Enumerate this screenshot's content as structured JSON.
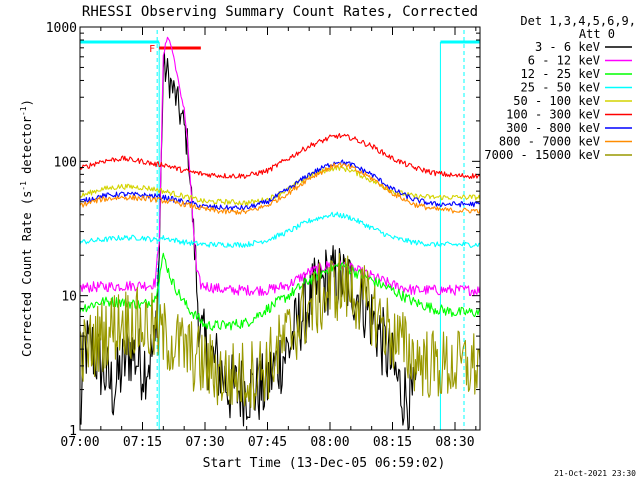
{
  "chart_data": {
    "type": "line",
    "title": "RHESSI Observing Summary Count Rates, Corrected",
    "xlabel": "Start Time (13-Dec-05 06:59:02)",
    "ylabel": "Corrected Count Rate (s⁻¹ detector⁻¹)",
    "ylabel_parts": [
      "Corrected Count Rate (s",
      "-1",
      " detector",
      "-1",
      ")"
    ],
    "yscale": "log",
    "ylim": [
      1,
      1000
    ],
    "xlim_min": [
      0,
      96
    ],
    "x_tick_minutes": [
      0,
      15,
      30,
      45,
      60,
      75,
      90
    ],
    "x_tick_labels": [
      "07:00",
      "07:15",
      "07:30",
      "07:45",
      "08:00",
      "08:15",
      "08:30"
    ],
    "y_ticks": [
      1,
      10,
      100,
      1000
    ],
    "y_tick_labels": [
      "1",
      "10",
      "100",
      "1000"
    ],
    "legend_header": [
      "Det 1,3,4,5,6,9,",
      "Att 0"
    ],
    "legend_position": "top-right",
    "footer_timestamp": "21-Oct-2021 23:30",
    "flag_marker": "F",
    "night_intervals_min": [
      [
        0,
        19
      ],
      [
        86.5,
        96
      ]
    ],
    "flare_bar_min": [
      19,
      29
    ],
    "series": [
      {
        "name": "3 - 6 keV",
        "color": "#000000",
        "points": [
          [
            0,
            1
          ],
          [
            1,
            4
          ],
          [
            3,
            4
          ],
          [
            5,
            3
          ],
          [
            8,
            2
          ],
          [
            12,
            4
          ],
          [
            15,
            3
          ],
          [
            17,
            3.5
          ],
          [
            18,
            4
          ],
          [
            19,
            20
          ],
          [
            20,
            500
          ],
          [
            21,
            450
          ],
          [
            22,
            360
          ],
          [
            23,
            300
          ],
          [
            24,
            230
          ],
          [
            25,
            180
          ],
          [
            26,
            120
          ],
          [
            27,
            40
          ],
          [
            28,
            12
          ],
          [
            29,
            5
          ],
          [
            30,
            4
          ],
          [
            33,
            3
          ],
          [
            36,
            2
          ],
          [
            40,
            2
          ],
          [
            44,
            2
          ],
          [
            47,
            3
          ],
          [
            50,
            4
          ],
          [
            53,
            7
          ],
          [
            56,
            10
          ],
          [
            59,
            13
          ],
          [
            62,
            13.5
          ],
          [
            65,
            12
          ],
          [
            68,
            9
          ],
          [
            71,
            6
          ],
          [
            74,
            3.5
          ],
          [
            77,
            2
          ],
          [
            80,
            1.6
          ],
          [
            81,
            2
          ]
        ]
      },
      {
        "name": "6 - 12 keV",
        "color": "#ff00ff",
        "points": [
          [
            0,
            11.5
          ],
          [
            10,
            11.8
          ],
          [
            17,
            12
          ],
          [
            18,
            12.5
          ],
          [
            19,
            25
          ],
          [
            20,
            600
          ],
          [
            21,
            870
          ],
          [
            22,
            700
          ],
          [
            23,
            500
          ],
          [
            24,
            330
          ],
          [
            25,
            250
          ],
          [
            26,
            120
          ],
          [
            27,
            40
          ],
          [
            28,
            15
          ],
          [
            29,
            12
          ],
          [
            35,
            11
          ],
          [
            40,
            11
          ],
          [
            45,
            11
          ],
          [
            50,
            12
          ],
          [
            55,
            15
          ],
          [
            60,
            17
          ],
          [
            62,
            17.2
          ],
          [
            65,
            16
          ],
          [
            70,
            14
          ],
          [
            75,
            12
          ],
          [
            80,
            11
          ],
          [
            85,
            11
          ],
          [
            90,
            11
          ],
          [
            96,
            11
          ]
        ]
      },
      {
        "name": "12 - 25 keV",
        "color": "#00ff00",
        "points": [
          [
            0,
            8
          ],
          [
            5,
            9
          ],
          [
            10,
            9
          ],
          [
            15,
            8.5
          ],
          [
            18,
            9.5
          ],
          [
            20,
            20
          ],
          [
            22,
            13
          ],
          [
            24,
            10
          ],
          [
            26,
            8
          ],
          [
            28,
            7
          ],
          [
            30,
            6
          ],
          [
            35,
            6
          ],
          [
            40,
            6.3
          ],
          [
            45,
            8
          ],
          [
            50,
            10
          ],
          [
            55,
            13
          ],
          [
            60,
            16
          ],
          [
            63,
            17
          ],
          [
            66,
            15
          ],
          [
            70,
            13
          ],
          [
            75,
            11
          ],
          [
            80,
            9
          ],
          [
            85,
            8
          ],
          [
            90,
            7.5
          ],
          [
            96,
            7.5
          ]
        ]
      },
      {
        "name": "25 - 50 keV",
        "color": "#00ffff",
        "points": [
          [
            0,
            25
          ],
          [
            10,
            27
          ],
          [
            15,
            27
          ],
          [
            18,
            26
          ],
          [
            20,
            27
          ],
          [
            25,
            25
          ],
          [
            30,
            24
          ],
          [
            35,
            24
          ],
          [
            40,
            24
          ],
          [
            45,
            26
          ],
          [
            50,
            30
          ],
          [
            55,
            36
          ],
          [
            60,
            40
          ],
          [
            62,
            40
          ],
          [
            65,
            38
          ],
          [
            70,
            32
          ],
          [
            75,
            27
          ],
          [
            80,
            25
          ],
          [
            85,
            24
          ],
          [
            90,
            24
          ],
          [
            96,
            24
          ]
        ]
      },
      {
        "name": "50 - 100 keV",
        "color": "#d4d400",
        "points": [
          [
            0,
            55
          ],
          [
            5,
            62
          ],
          [
            10,
            65
          ],
          [
            15,
            64
          ],
          [
            18,
            62
          ],
          [
            20,
            60
          ],
          [
            25,
            55
          ],
          [
            30,
            50
          ],
          [
            35,
            50
          ],
          [
            40,
            49
          ],
          [
            45,
            52
          ],
          [
            50,
            62
          ],
          [
            55,
            78
          ],
          [
            60,
            88
          ],
          [
            62,
            90
          ],
          [
            65,
            86
          ],
          [
            70,
            72
          ],
          [
            75,
            60
          ],
          [
            80,
            55
          ],
          [
            85,
            54
          ],
          [
            90,
            54
          ],
          [
            96,
            54
          ]
        ]
      },
      {
        "name": "100 - 300 keV",
        "color": "#ff0000",
        "points": [
          [
            0,
            88
          ],
          [
            5,
            100
          ],
          [
            10,
            105
          ],
          [
            15,
            100
          ],
          [
            18,
            95
          ],
          [
            20,
            95
          ],
          [
            25,
            85
          ],
          [
            30,
            80
          ],
          [
            35,
            78
          ],
          [
            40,
            78
          ],
          [
            45,
            85
          ],
          [
            50,
            105
          ],
          [
            55,
            130
          ],
          [
            60,
            150
          ],
          [
            62,
            155
          ],
          [
            65,
            150
          ],
          [
            70,
            130
          ],
          [
            75,
            105
          ],
          [
            80,
            90
          ],
          [
            85,
            82
          ],
          [
            90,
            78
          ],
          [
            96,
            78
          ]
        ]
      },
      {
        "name": "300 - 800 keV",
        "color": "#0000ff",
        "points": [
          [
            0,
            50
          ],
          [
            5,
            55
          ],
          [
            10,
            57
          ],
          [
            15,
            56
          ],
          [
            18,
            55
          ],
          [
            20,
            54
          ],
          [
            25,
            50
          ],
          [
            30,
            46
          ],
          [
            35,
            45
          ],
          [
            40,
            45
          ],
          [
            45,
            50
          ],
          [
            50,
            62
          ],
          [
            55,
            80
          ],
          [
            60,
            95
          ],
          [
            62,
            100
          ],
          [
            65,
            95
          ],
          [
            70,
            80
          ],
          [
            75,
            62
          ],
          [
            80,
            52
          ],
          [
            85,
            48
          ],
          [
            90,
            48
          ],
          [
            96,
            48
          ]
        ]
      },
      {
        "name": "800 - 7000 keV",
        "color": "#ff8c00",
        "points": [
          [
            0,
            47
          ],
          [
            5,
            52
          ],
          [
            10,
            54
          ],
          [
            15,
            53
          ],
          [
            18,
            52
          ],
          [
            20,
            51
          ],
          [
            25,
            48
          ],
          [
            30,
            44
          ],
          [
            35,
            42
          ],
          [
            40,
            42
          ],
          [
            45,
            47
          ],
          [
            50,
            58
          ],
          [
            55,
            75
          ],
          [
            60,
            90
          ],
          [
            62,
            95
          ],
          [
            65,
            90
          ],
          [
            70,
            75
          ],
          [
            75,
            58
          ],
          [
            80,
            48
          ],
          [
            85,
            44
          ],
          [
            90,
            43
          ],
          [
            96,
            43
          ]
        ]
      },
      {
        "name": "7000 - 15000 keV",
        "color": "#999900",
        "points": [
          [
            0,
            3.5
          ],
          [
            5,
            5
          ],
          [
            10,
            6.5
          ],
          [
            15,
            6
          ],
          [
            18,
            5.5
          ],
          [
            20,
            5
          ],
          [
            25,
            4
          ],
          [
            30,
            3
          ],
          [
            35,
            2.5
          ],
          [
            40,
            2.5
          ],
          [
            45,
            3
          ],
          [
            50,
            5
          ],
          [
            55,
            8
          ],
          [
            60,
            11
          ],
          [
            62,
            12
          ],
          [
            65,
            11
          ],
          [
            70,
            8
          ],
          [
            75,
            5
          ],
          [
            80,
            3.5
          ],
          [
            85,
            3
          ],
          [
            90,
            3
          ],
          [
            96,
            3
          ]
        ]
      }
    ]
  }
}
